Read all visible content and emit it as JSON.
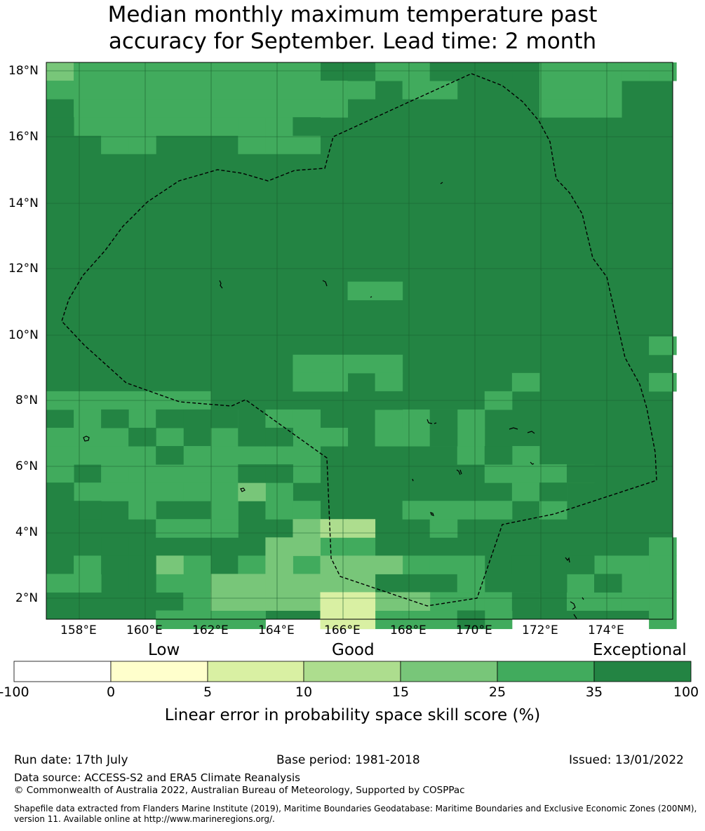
{
  "title": {
    "line1": "Median monthly maximum temperature past",
    "line2": "accuracy for September. Lead time: 2 month"
  },
  "map": {
    "lat_labels": [
      "18°N",
      "16°N",
      "14°N",
      "12°N",
      "10°N",
      "8°N",
      "6°N",
      "4°N",
      "2°N"
    ],
    "lon_labels": [
      "158°E",
      "160°E",
      "162°E",
      "164°E",
      "166°E",
      "168°E",
      "170°E",
      "172°E",
      "174°E"
    ],
    "colors": {
      "dark": "#238443",
      "mid": "#41ab5d",
      "light": "#78c679",
      "pale": "#addd8e",
      "yellowgreen": "#d9f0a3"
    }
  },
  "colorbar": {
    "category_labels": [
      "Low",
      "Good",
      "Exceptional"
    ],
    "ticks": [
      "-100",
      "0",
      "5",
      "10",
      "15",
      "25",
      "35",
      "100"
    ],
    "colors": [
      "#ffffff",
      "#ffffcc",
      "#d9f0a3",
      "#addd8e",
      "#78c679",
      "#41ab5d",
      "#238443"
    ],
    "label": "Linear error in probability space skill score (%)"
  },
  "footer": {
    "run_date": "Run date: 17th July",
    "base_period": "Base period: 1981-2018",
    "issued": "Issued: 13/01/2022",
    "data_source": "Data source: ACCESS-S2 and ERA5 Climate Reanalysis",
    "copyright": "© Commonwealth of Australia 2022, Australian Bureau of Meteorology, Supported by COSPPac",
    "shapefile": "Shapefile data extracted from Flanders Marine Institute (2019), Maritime Boundaries Geodatabase: Maritime Boundaries and Exclusive Economic Zones (200NM), version 11. Available online at http://www.marineregions.org/."
  }
}
